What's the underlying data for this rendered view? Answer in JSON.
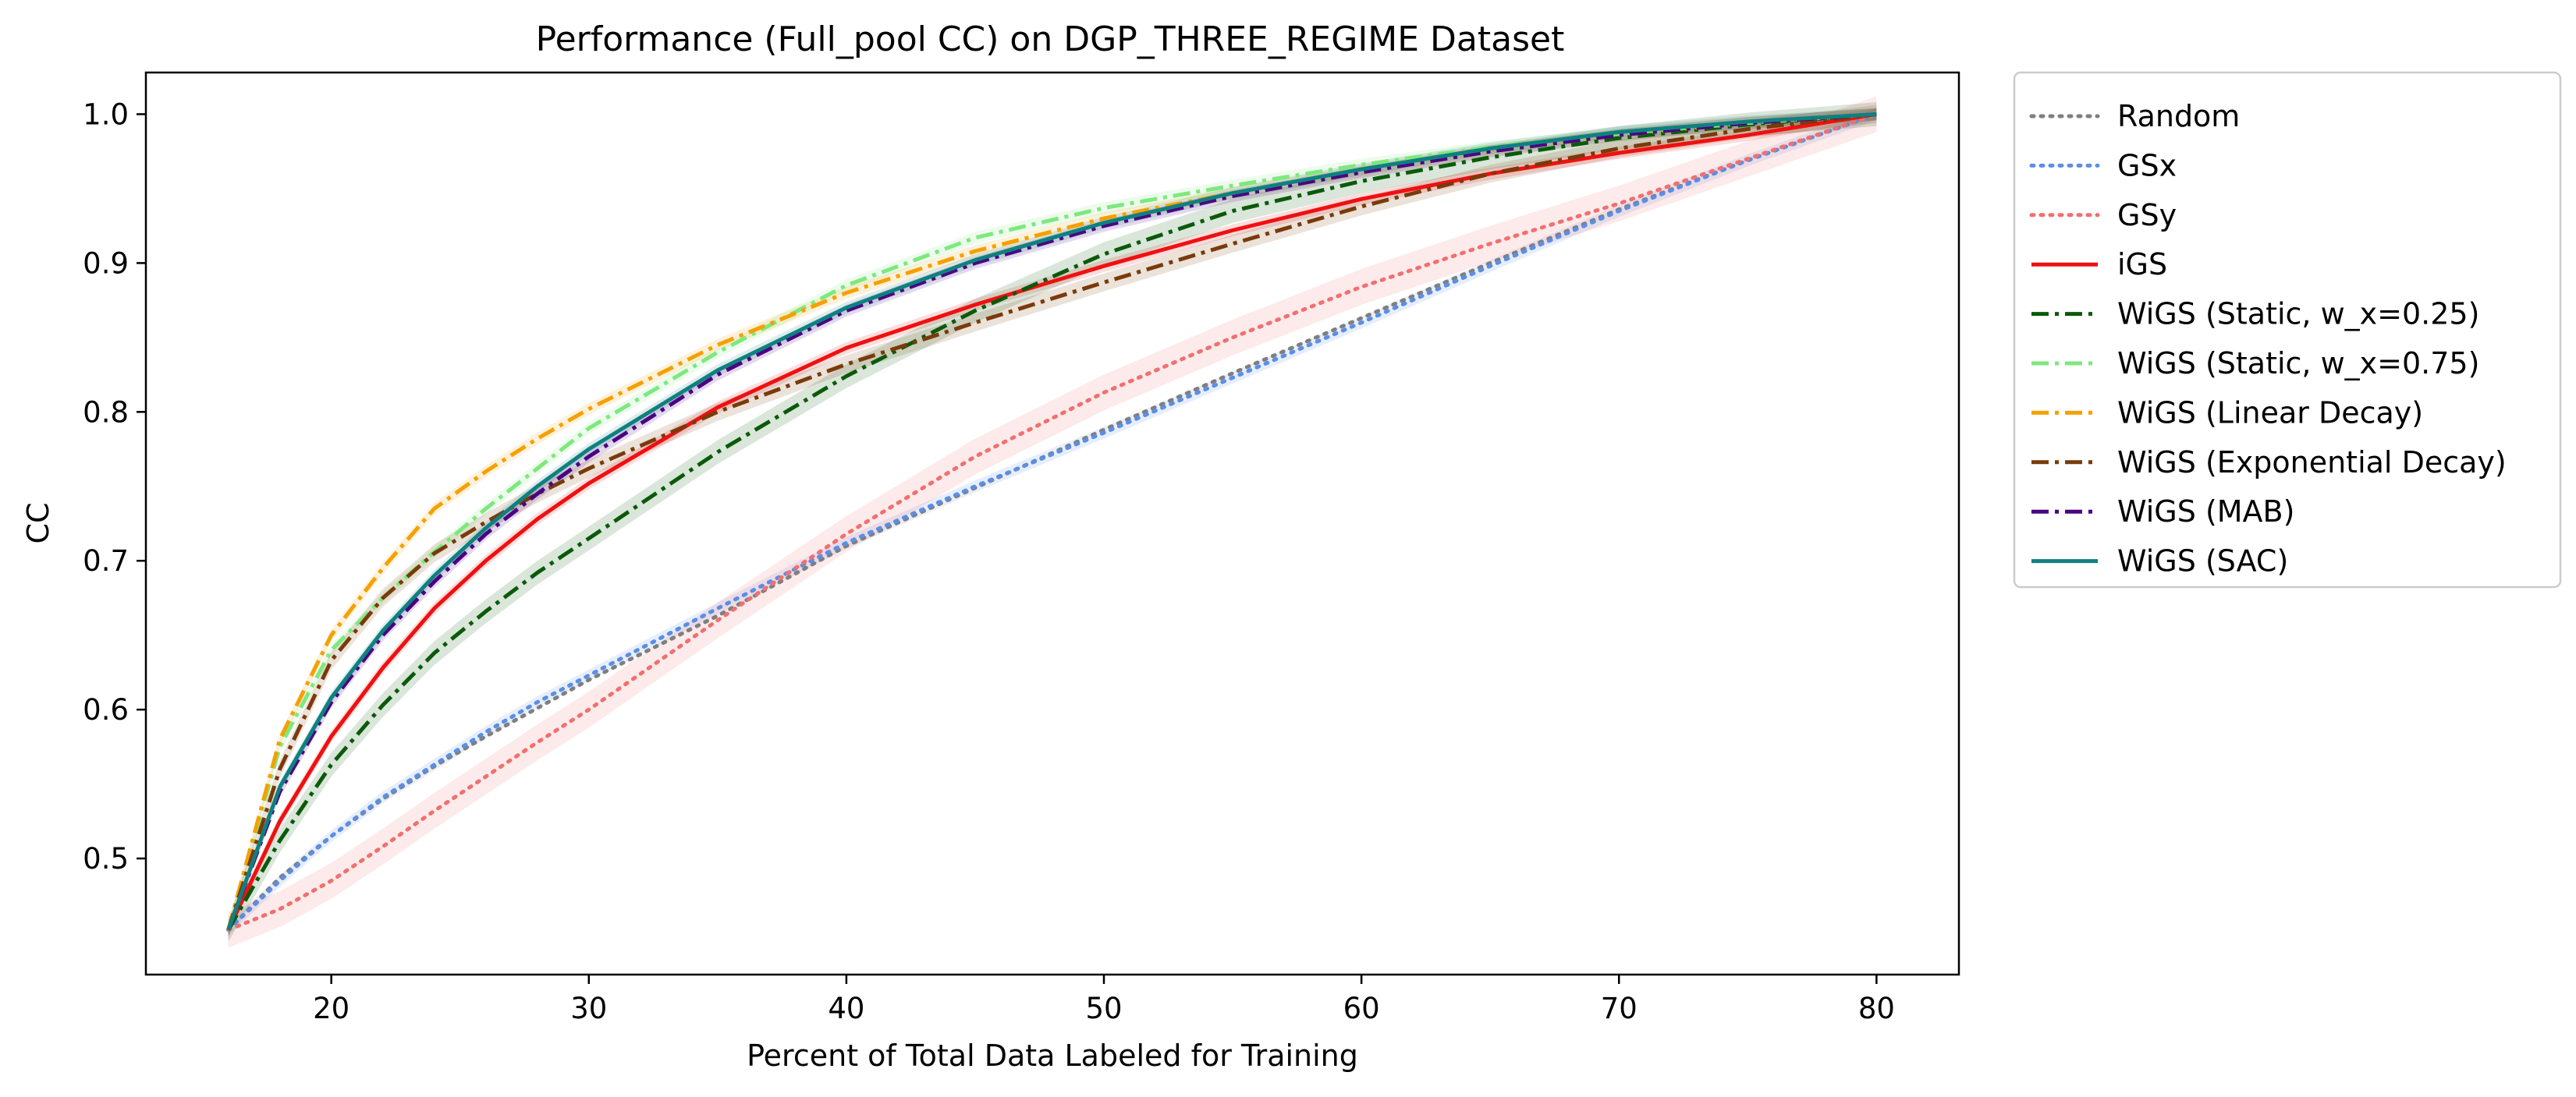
{
  "chart_data": {
    "type": "line",
    "title": "Performance (Full_pool CC) on DGP_THREE_REGIME Dataset",
    "xlabel": "Percent of Total Data Labeled for Training",
    "ylabel": "CC",
    "xlim": [
      12.8,
      83.2
    ],
    "ylim": [
      0.422,
      1.028
    ],
    "xticks": [
      20,
      30,
      40,
      50,
      60,
      70,
      80
    ],
    "yticks": [
      0.5,
      0.6,
      0.7,
      0.8,
      0.9,
      1.0
    ],
    "xtick_labels": [
      "20",
      "30",
      "40",
      "50",
      "60",
      "70",
      "80"
    ],
    "ytick_labels": [
      "0.5",
      "0.6",
      "0.7",
      "0.8",
      "0.9",
      "1.0"
    ],
    "grid": false,
    "legend_position": "outside-right-top",
    "x": [
      16,
      18,
      20,
      22,
      24,
      26,
      28,
      30,
      35,
      40,
      45,
      50,
      55,
      60,
      65,
      70,
      75,
      80
    ],
    "series": [
      {
        "name": "Random",
        "color": "#7f7f7f",
        "style": "dotted",
        "band": 0,
        "values": [
          0.452,
          0.487,
          0.515,
          0.54,
          0.562,
          0.582,
          0.601,
          0.62,
          0.663,
          0.71,
          0.749,
          0.788,
          0.826,
          0.863,
          0.9,
          0.936,
          0.969,
          1.0
        ]
      },
      {
        "name": "GSx",
        "color": "#5b8ee6",
        "style": "dotted",
        "band": 0.004,
        "values": [
          0.452,
          0.485,
          0.515,
          0.541,
          0.563,
          0.585,
          0.605,
          0.623,
          0.668,
          0.712,
          0.75,
          0.786,
          0.823,
          0.86,
          0.898,
          0.935,
          0.969,
          1.0
        ]
      },
      {
        "name": "GSy",
        "color": "#f07070",
        "style": "dotted",
        "band": 0.012,
        "values": [
          0.452,
          0.466,
          0.485,
          0.508,
          0.532,
          0.555,
          0.578,
          0.6,
          0.66,
          0.718,
          0.77,
          0.813,
          0.85,
          0.884,
          0.913,
          0.94,
          0.97,
          1.0
        ]
      },
      {
        "name": "iGS",
        "color": "#ee1111",
        "style": "solid",
        "band": 0.004,
        "values": [
          0.452,
          0.525,
          0.582,
          0.628,
          0.668,
          0.7,
          0.728,
          0.752,
          0.803,
          0.843,
          0.872,
          0.898,
          0.922,
          0.943,
          0.96,
          0.974,
          0.986,
          1.0
        ]
      },
      {
        "name": "WiGS (Static, w_x=0.25)",
        "color": "#0a5a0a",
        "style": "dashdot",
        "band": 0.008,
        "values": [
          0.452,
          0.512,
          0.563,
          0.603,
          0.638,
          0.666,
          0.692,
          0.715,
          0.773,
          0.824,
          0.868,
          0.906,
          0.935,
          0.955,
          0.971,
          0.984,
          0.993,
          1.0
        ]
      },
      {
        "name": "WiGS (Static, w_x=0.75)",
        "color": "#7ee87e",
        "style": "dashdot",
        "band": 0.004,
        "values": [
          0.452,
          0.575,
          0.64,
          0.675,
          0.706,
          0.735,
          0.762,
          0.789,
          0.84,
          0.885,
          0.917,
          0.937,
          0.952,
          0.966,
          0.978,
          0.987,
          0.994,
          1.0
        ]
      },
      {
        "name": "WiGS (Linear Decay)",
        "color": "#f5a000",
        "style": "dashdot",
        "band": 0.004,
        "values": [
          0.452,
          0.58,
          0.65,
          0.695,
          0.735,
          0.76,
          0.782,
          0.802,
          0.845,
          0.88,
          0.908,
          0.93,
          0.947,
          0.962,
          0.976,
          0.986,
          0.994,
          1.0
        ]
      },
      {
        "name": "WiGS (Exponential Decay)",
        "color": "#7a3a0a",
        "style": "dashdot",
        "band": 0.006,
        "values": [
          0.452,
          0.56,
          0.633,
          0.675,
          0.705,
          0.726,
          0.745,
          0.762,
          0.8,
          0.832,
          0.86,
          0.887,
          0.913,
          0.938,
          0.96,
          0.977,
          0.99,
          1.0
        ]
      },
      {
        "name": "WiGS (MAB)",
        "color": "#4b0082",
        "style": "dashdot",
        "band": 0.004,
        "values": [
          0.452,
          0.545,
          0.605,
          0.65,
          0.686,
          0.718,
          0.745,
          0.77,
          0.825,
          0.868,
          0.9,
          0.925,
          0.945,
          0.961,
          0.975,
          0.986,
          0.994,
          1.0
        ]
      },
      {
        "name": "WiGS (SAC)",
        "color": "#0f8080",
        "style": "solid",
        "band": 0.004,
        "values": [
          0.452,
          0.548,
          0.608,
          0.653,
          0.69,
          0.722,
          0.75,
          0.775,
          0.828,
          0.87,
          0.902,
          0.927,
          0.947,
          0.963,
          0.977,
          0.988,
          0.995,
          1.0
        ]
      }
    ]
  }
}
